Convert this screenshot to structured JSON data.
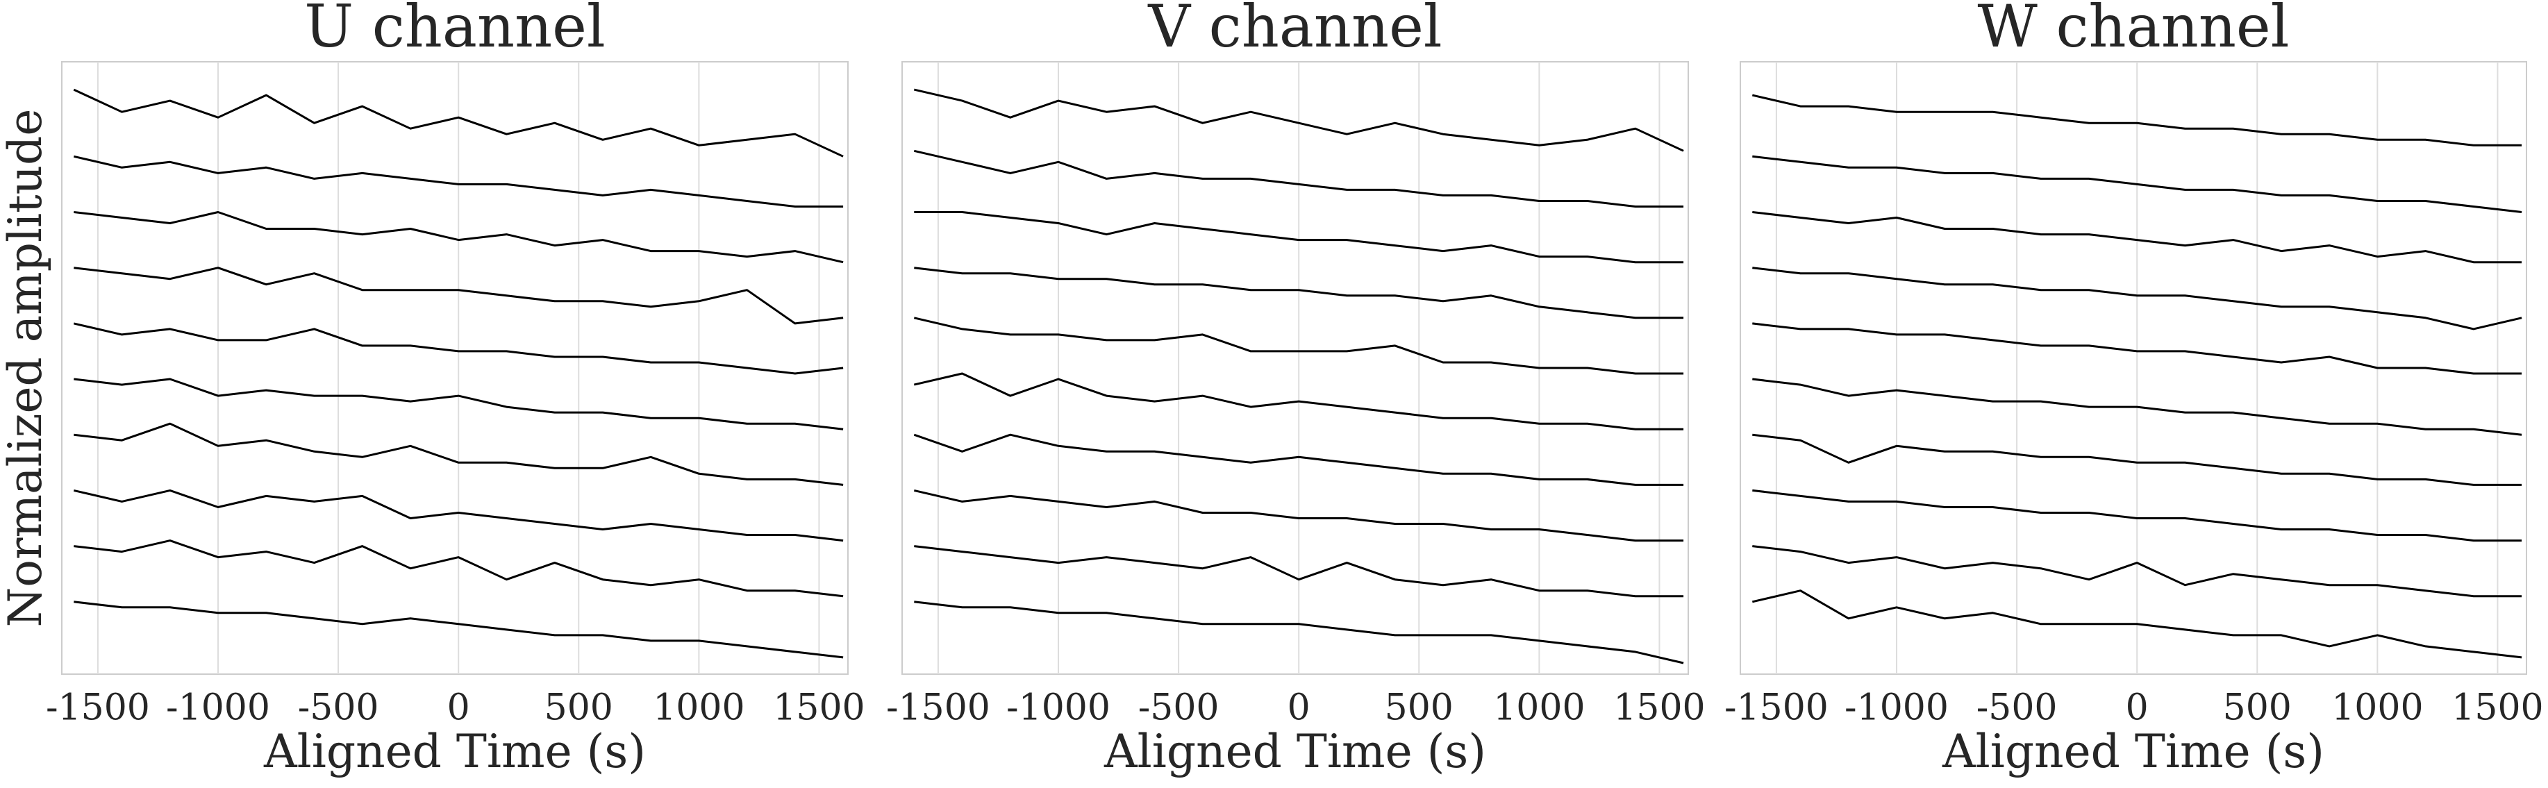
{
  "chart_data": [
    {
      "type": "line",
      "title": "U channel",
      "xlabel": "Aligned Time (s)",
      "ylabel": "Normalized amplitude",
      "x": [
        -1600,
        -1400,
        -1200,
        -1000,
        -800,
        -600,
        -400,
        -200,
        0,
        200,
        400,
        600,
        800,
        1000,
        1200,
        1400,
        1600
      ],
      "xlim": [
        -1650,
        1620
      ],
      "xticks": [
        -1500,
        -1000,
        -500,
        0,
        500,
        1000,
        1500
      ],
      "ylim": [
        0,
        11
      ],
      "grid": true,
      "series": [
        {
          "color": "#000000",
          "values": [
            10.5,
            10.1,
            10.3,
            10.0,
            10.4,
            9.9,
            10.2,
            9.8,
            10.0,
            9.7,
            9.9,
            9.6,
            9.8,
            9.5,
            9.6,
            9.7,
            9.3
          ]
        },
        {
          "color": "#000000",
          "values": [
            9.3,
            9.1,
            9.2,
            9.0,
            9.1,
            8.9,
            9.0,
            8.9,
            8.8,
            8.8,
            8.7,
            8.6,
            8.7,
            8.6,
            8.5,
            8.4,
            8.4
          ]
        },
        {
          "color": "#000000",
          "values": [
            8.3,
            8.2,
            8.1,
            8.3,
            8.0,
            8.0,
            7.9,
            8.0,
            7.8,
            7.9,
            7.7,
            7.8,
            7.6,
            7.6,
            7.5,
            7.6,
            7.4
          ]
        },
        {
          "color": "#000000",
          "values": [
            7.3,
            7.2,
            7.1,
            7.3,
            7.0,
            7.2,
            6.9,
            6.9,
            6.9,
            6.8,
            6.7,
            6.7,
            6.6,
            6.7,
            6.9,
            6.3,
            6.4
          ]
        },
        {
          "color": "#000000",
          "values": [
            6.3,
            6.1,
            6.2,
            6.0,
            6.0,
            6.2,
            5.9,
            5.9,
            5.8,
            5.8,
            5.7,
            5.7,
            5.6,
            5.6,
            5.5,
            5.4,
            5.5
          ]
        },
        {
          "color": "#000000",
          "values": [
            5.3,
            5.2,
            5.3,
            5.0,
            5.1,
            5.0,
            5.0,
            4.9,
            5.0,
            4.8,
            4.7,
            4.7,
            4.6,
            4.6,
            4.5,
            4.5,
            4.4
          ]
        },
        {
          "color": "#000000",
          "values": [
            4.3,
            4.2,
            4.5,
            4.1,
            4.2,
            4.0,
            3.9,
            4.1,
            3.8,
            3.8,
            3.7,
            3.7,
            3.9,
            3.6,
            3.5,
            3.5,
            3.4
          ]
        },
        {
          "color": "#000000",
          "values": [
            3.3,
            3.1,
            3.3,
            3.0,
            3.2,
            3.1,
            3.2,
            2.8,
            2.9,
            2.8,
            2.7,
            2.6,
            2.7,
            2.6,
            2.5,
            2.5,
            2.4
          ]
        },
        {
          "color": "#000000",
          "values": [
            2.3,
            2.2,
            2.4,
            2.1,
            2.2,
            2.0,
            2.3,
            1.9,
            2.1,
            1.7,
            2.0,
            1.7,
            1.6,
            1.7,
            1.5,
            1.5,
            1.4
          ]
        },
        {
          "color": "#000000",
          "values": [
            1.3,
            1.2,
            1.2,
            1.1,
            1.1,
            1.0,
            0.9,
            1.0,
            0.9,
            0.8,
            0.7,
            0.7,
            0.6,
            0.6,
            0.5,
            0.4,
            0.3
          ]
        }
      ]
    },
    {
      "type": "line",
      "title": "V channel",
      "xlabel": "Aligned Time (s)",
      "x": [
        -1600,
        -1400,
        -1200,
        -1000,
        -800,
        -600,
        -400,
        -200,
        0,
        200,
        400,
        600,
        800,
        1000,
        1200,
        1400,
        1600
      ],
      "xlim": [
        -1650,
        1620
      ],
      "xticks": [
        -1500,
        -1000,
        -500,
        0,
        500,
        1000,
        1500
      ],
      "ylim": [
        0,
        11
      ],
      "grid": true,
      "series": [
        {
          "color": "#000000",
          "values": [
            10.5,
            10.3,
            10.0,
            10.3,
            10.1,
            10.2,
            9.9,
            10.1,
            9.9,
            9.7,
            9.9,
            9.7,
            9.6,
            9.5,
            9.6,
            9.8,
            9.4
          ]
        },
        {
          "color": "#000000",
          "values": [
            9.4,
            9.2,
            9.0,
            9.2,
            8.9,
            9.0,
            8.9,
            8.9,
            8.8,
            8.7,
            8.7,
            8.6,
            8.6,
            8.5,
            8.5,
            8.4,
            8.4
          ]
        },
        {
          "color": "#000000",
          "values": [
            8.3,
            8.3,
            8.2,
            8.1,
            7.9,
            8.1,
            8.0,
            7.9,
            7.8,
            7.8,
            7.7,
            7.6,
            7.7,
            7.5,
            7.5,
            7.4,
            7.4
          ]
        },
        {
          "color": "#000000",
          "values": [
            7.3,
            7.2,
            7.2,
            7.1,
            7.1,
            7.0,
            7.0,
            6.9,
            6.9,
            6.8,
            6.8,
            6.7,
            6.8,
            6.6,
            6.5,
            6.4,
            6.4
          ]
        },
        {
          "color": "#000000",
          "values": [
            6.4,
            6.2,
            6.1,
            6.1,
            6.0,
            6.0,
            6.1,
            5.8,
            5.8,
            5.8,
            5.9,
            5.6,
            5.6,
            5.5,
            5.5,
            5.4,
            5.4
          ]
        },
        {
          "color": "#000000",
          "values": [
            5.2,
            5.4,
            5.0,
            5.3,
            5.0,
            4.9,
            5.0,
            4.8,
            4.9,
            4.8,
            4.7,
            4.6,
            4.6,
            4.5,
            4.5,
            4.4,
            4.4
          ]
        },
        {
          "color": "#000000",
          "values": [
            4.3,
            4.0,
            4.3,
            4.1,
            4.0,
            4.0,
            3.9,
            3.8,
            3.9,
            3.8,
            3.7,
            3.6,
            3.6,
            3.5,
            3.5,
            3.4,
            3.4
          ]
        },
        {
          "color": "#000000",
          "values": [
            3.3,
            3.1,
            3.2,
            3.1,
            3.0,
            3.1,
            2.9,
            2.9,
            2.8,
            2.8,
            2.7,
            2.7,
            2.6,
            2.6,
            2.5,
            2.4,
            2.4
          ]
        },
        {
          "color": "#000000",
          "values": [
            2.3,
            2.2,
            2.1,
            2.0,
            2.1,
            2.0,
            1.9,
            2.1,
            1.7,
            2.0,
            1.7,
            1.6,
            1.7,
            1.5,
            1.5,
            1.4,
            1.4
          ]
        },
        {
          "color": "#000000",
          "values": [
            1.3,
            1.2,
            1.2,
            1.1,
            1.1,
            1.0,
            0.9,
            0.9,
            0.9,
            0.8,
            0.7,
            0.7,
            0.7,
            0.6,
            0.5,
            0.4,
            0.2
          ]
        }
      ]
    },
    {
      "type": "line",
      "title": "W channel",
      "xlabel": "Aligned Time (s)",
      "x": [
        -1600,
        -1400,
        -1200,
        -1000,
        -800,
        -600,
        -400,
        -200,
        0,
        200,
        400,
        600,
        800,
        1000,
        1200,
        1400,
        1600
      ],
      "xlim": [
        -1650,
        1620
      ],
      "xticks": [
        -1500,
        -1000,
        -500,
        0,
        500,
        1000,
        1500
      ],
      "ylim": [
        0,
        11
      ],
      "grid": true,
      "series": [
        {
          "color": "#000000",
          "values": [
            10.4,
            10.2,
            10.2,
            10.1,
            10.1,
            10.1,
            10.0,
            9.9,
            9.9,
            9.8,
            9.8,
            9.7,
            9.7,
            9.6,
            9.6,
            9.5,
            9.5
          ]
        },
        {
          "color": "#000000",
          "values": [
            9.3,
            9.2,
            9.1,
            9.1,
            9.0,
            9.0,
            8.9,
            8.9,
            8.8,
            8.7,
            8.7,
            8.6,
            8.6,
            8.5,
            8.5,
            8.4,
            8.3
          ]
        },
        {
          "color": "#000000",
          "values": [
            8.3,
            8.2,
            8.1,
            8.2,
            8.0,
            8.0,
            7.9,
            7.9,
            7.8,
            7.7,
            7.8,
            7.6,
            7.7,
            7.5,
            7.6,
            7.4,
            7.4
          ]
        },
        {
          "color": "#000000",
          "values": [
            7.3,
            7.2,
            7.2,
            7.1,
            7.0,
            7.0,
            6.9,
            6.9,
            6.8,
            6.8,
            6.7,
            6.6,
            6.6,
            6.5,
            6.4,
            6.2,
            6.4
          ]
        },
        {
          "color": "#000000",
          "values": [
            6.3,
            6.2,
            6.2,
            6.1,
            6.1,
            6.0,
            5.9,
            5.9,
            5.8,
            5.8,
            5.7,
            5.6,
            5.7,
            5.5,
            5.5,
            5.4,
            5.4
          ]
        },
        {
          "color": "#000000",
          "values": [
            5.3,
            5.2,
            5.0,
            5.1,
            5.0,
            4.9,
            4.9,
            4.8,
            4.8,
            4.7,
            4.7,
            4.6,
            4.5,
            4.5,
            4.4,
            4.4,
            4.3
          ]
        },
        {
          "color": "#000000",
          "values": [
            4.3,
            4.2,
            3.8,
            4.1,
            4.0,
            4.0,
            3.9,
            3.9,
            3.8,
            3.8,
            3.7,
            3.6,
            3.6,
            3.5,
            3.5,
            3.4,
            3.4
          ]
        },
        {
          "color": "#000000",
          "values": [
            3.3,
            3.2,
            3.1,
            3.1,
            3.0,
            3.0,
            2.9,
            2.9,
            2.8,
            2.8,
            2.7,
            2.6,
            2.6,
            2.5,
            2.5,
            2.4,
            2.4
          ]
        },
        {
          "color": "#000000",
          "values": [
            2.3,
            2.2,
            2.0,
            2.1,
            1.9,
            2.0,
            1.9,
            1.7,
            2.0,
            1.6,
            1.8,
            1.7,
            1.6,
            1.6,
            1.5,
            1.4,
            1.4
          ]
        },
        {
          "color": "#000000",
          "values": [
            1.3,
            1.5,
            1.0,
            1.2,
            1.0,
            1.1,
            0.9,
            0.9,
            0.9,
            0.8,
            0.7,
            0.7,
            0.5,
            0.7,
            0.5,
            0.4,
            0.3
          ]
        }
      ]
    }
  ]
}
